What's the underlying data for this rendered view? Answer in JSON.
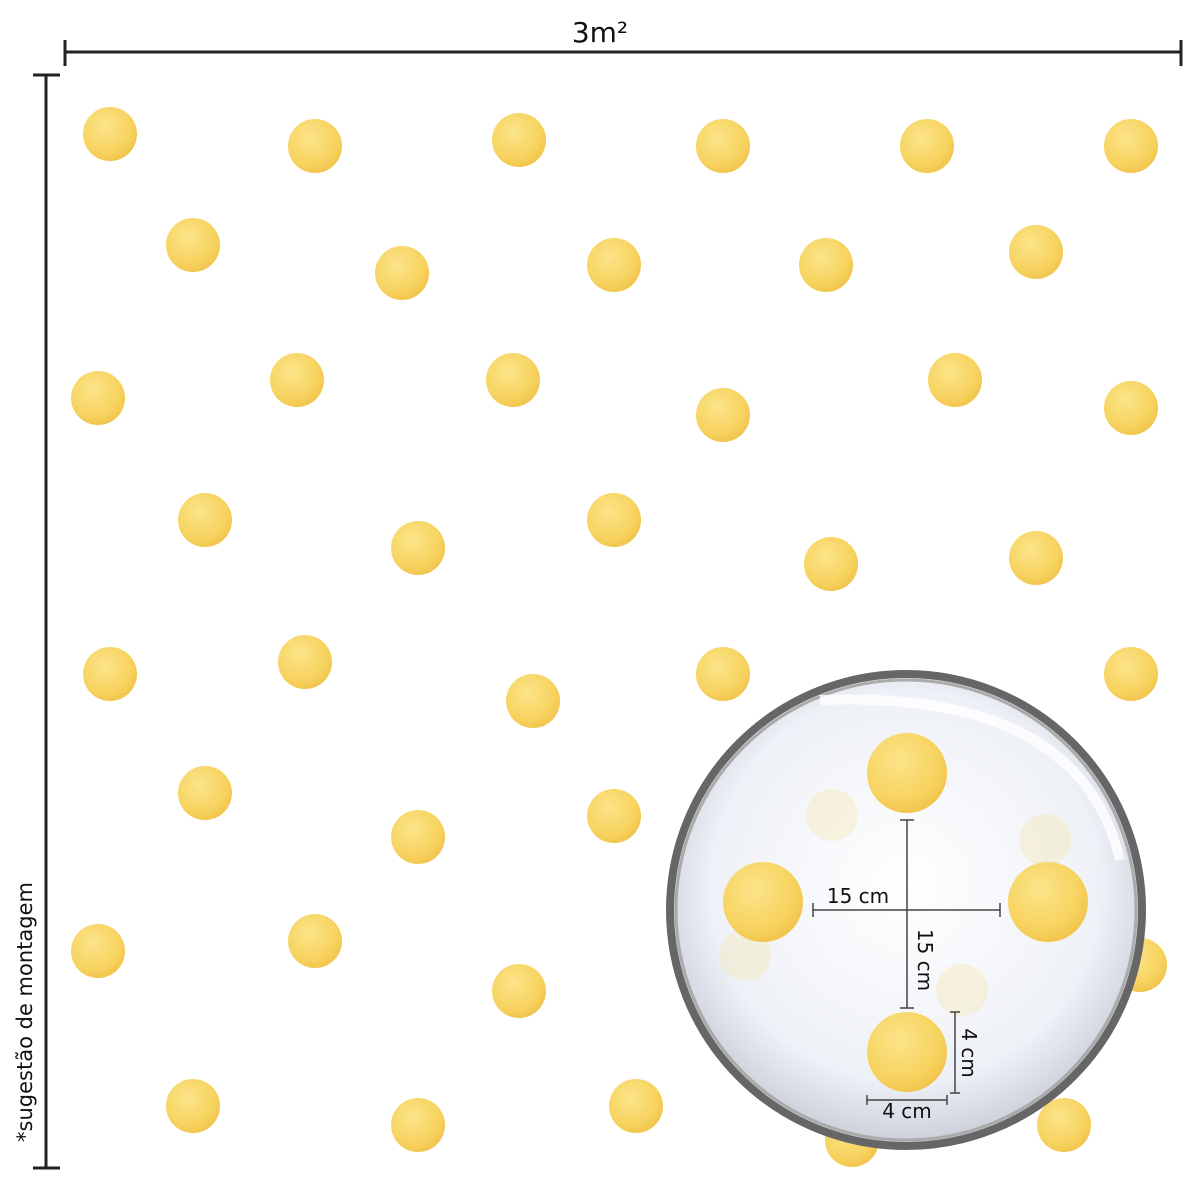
{
  "header": {
    "width_label": "3m²"
  },
  "side_note": "*sugestão de montagem",
  "detail": {
    "horizontal_spacing": "15 cm",
    "vertical_spacing": "15 cm",
    "dot_height": "4 cm",
    "dot_width": "4 cm"
  }
}
